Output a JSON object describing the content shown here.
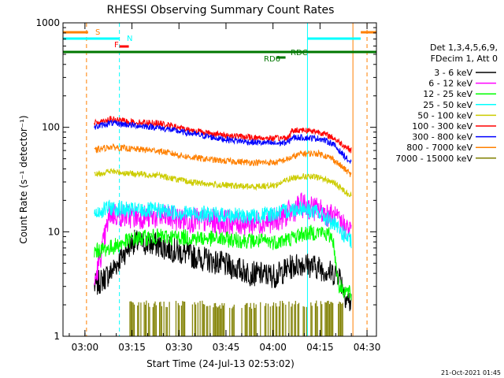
{
  "chart_data": {
    "type": "line",
    "title": "RHESSI Observing Summary Count Rates",
    "xlabel": "Start Time (24-Jul-13 02:53:02)",
    "ylabel": "Count Rate (s⁻¹ detector⁻¹)",
    "x_tick_labels": [
      "03:00",
      "03:15",
      "03:30",
      "03:45",
      "04:00",
      "04:15",
      "04:30"
    ],
    "x_ticks_min_after_start": [
      7,
      22,
      37,
      52,
      67,
      82,
      97
    ],
    "x_range_min_after_start": [
      0,
      100
    ],
    "y_scale": "log",
    "y_range": [
      1,
      1000
    ],
    "y_tick_labels": [
      "1",
      "10",
      "100",
      "1000"
    ],
    "legend_header": [
      "Det 1,3,4,5,6,9,",
      "FDecim 1, Att 0"
    ],
    "legend_position": "right",
    "timestamp": "21-Oct-2021 01:45",
    "flags": [
      {
        "label": "S",
        "color": "#ff8000",
        "segments": [
          [
            0,
            8
          ],
          [
            95,
            100
          ]
        ]
      },
      {
        "label": "N",
        "color": "#00ffff",
        "segments": [
          [
            0,
            18
          ],
          [
            78,
            95
          ]
        ]
      },
      {
        "label": "F",
        "color": "#ff0000",
        "segments": [
          [
            18,
            21
          ]
        ]
      },
      {
        "label": "RD6",
        "color": "#007700",
        "segments": [
          [
            68,
            71
          ]
        ]
      },
      {
        "label": "RDC",
        "color": "#007700",
        "segments": [
          [
            0,
            100
          ]
        ]
      }
    ],
    "vlines": [
      {
        "t": 0,
        "color": "#00ffff",
        "dash": false
      },
      {
        "t": 7.5,
        "color": "#ff8000",
        "dash": true
      },
      {
        "t": 18,
        "color": "#00ffff",
        "dash": true
      },
      {
        "t": 78,
        "color": "#00ffff",
        "dash": false
      },
      {
        "t": 92.5,
        "color": "#ff8000",
        "dash": false
      },
      {
        "t": 97,
        "color": "#ff8000",
        "dash": true
      }
    ],
    "data_interval_min": [
      10,
      92
    ],
    "series": [
      {
        "name": "3 - 6 keV",
        "color": "#000000",
        "t": [
          10,
          15,
          22,
          30,
          40,
          50,
          60,
          68,
          72,
          76,
          82,
          86,
          88,
          90,
          92
        ],
        "v": [
          3.0,
          4.0,
          8.0,
          7.5,
          6.0,
          5.0,
          4.0,
          3.8,
          4.5,
          5.0,
          4.5,
          4.0,
          4.0,
          2.5,
          2.0
        ]
      },
      {
        "name": "6 - 12 keV",
        "color": "#ff00ff",
        "t": [
          10,
          15,
          22,
          30,
          40,
          50,
          60,
          68,
          72,
          76,
          82,
          86,
          92
        ],
        "v": [
          3.2,
          15.0,
          14.0,
          14.0,
          13.0,
          12.5,
          12.0,
          13.0,
          15.0,
          18.0,
          16.0,
          14.0,
          10.0
        ]
      },
      {
        "name": "12 - 25 keV",
        "color": "#00ff00",
        "t": [
          10,
          15,
          22,
          30,
          40,
          50,
          60,
          68,
          72,
          76,
          82,
          86,
          88,
          92
        ],
        "v": [
          6.5,
          7.0,
          8.5,
          9.0,
          8.8,
          8.5,
          8.2,
          8.0,
          8.5,
          9.5,
          10.0,
          9.0,
          3.0,
          2.5
        ]
      },
      {
        "name": "25 - 50 keV",
        "color": "#00ffff",
        "t": [
          10,
          15,
          22,
          30,
          40,
          50,
          60,
          68,
          72,
          76,
          82,
          86,
          92
        ],
        "v": [
          15.0,
          17.0,
          16.0,
          16.0,
          15.0,
          14.5,
          14.0,
          15.0,
          16.0,
          17.0,
          15.0,
          12.0,
          8.0
        ]
      },
      {
        "name": "50 - 100 keV",
        "color": "#cccc00",
        "t": [
          10,
          15,
          22,
          30,
          40,
          50,
          60,
          68,
          72,
          76,
          82,
          86,
          92
        ],
        "v": [
          35.0,
          38.0,
          36.0,
          35.0,
          30.0,
          28.0,
          27.0,
          28.0,
          32.0,
          34.0,
          33.0,
          30.0,
          22.0
        ]
      },
      {
        "name": "100 - 300 keV",
        "color": "#ff0000",
        "t": [
          10,
          15,
          22,
          30,
          40,
          50,
          60,
          68,
          72,
          73,
          76,
          82,
          86,
          92
        ],
        "v": [
          110.0,
          120.0,
          112.0,
          110.0,
          95.0,
          85.0,
          80.0,
          78.0,
          80.0,
          92.0,
          95.0,
          90.0,
          80.0,
          60.0
        ]
      },
      {
        "name": "300 - 800 keV",
        "color": "#0000ff",
        "t": [
          10,
          15,
          22,
          30,
          40,
          50,
          60,
          68,
          72,
          73,
          76,
          82,
          86,
          92
        ],
        "v": [
          100.0,
          110.0,
          105.0,
          100.0,
          88.0,
          78.0,
          72.0,
          70.0,
          72.0,
          80.0,
          80.0,
          78.0,
          70.0,
          45.0
        ]
      },
      {
        "name": "800 - 7000 keV",
        "color": "#ff8000",
        "t": [
          10,
          15,
          22,
          30,
          40,
          50,
          60,
          68,
          72,
          76,
          82,
          86,
          92
        ],
        "v": [
          60.0,
          65.0,
          62.0,
          60.0,
          52.0,
          48.0,
          46.0,
          46.0,
          50.0,
          56.0,
          56.0,
          50.0,
          35.0
        ]
      },
      {
        "name": "7000 - 15000 keV",
        "color": "#808000",
        "t": [
          21,
          28,
          36,
          44,
          52,
          60,
          66,
          70,
          74,
          78,
          82,
          86,
          90
        ],
        "v": [
          2.0,
          2.0,
          2.0,
          2.0,
          1.9,
          1.9,
          2.0,
          2.0,
          2.0,
          2.0,
          2.0,
          2.0,
          2.0
        ]
      }
    ]
  }
}
